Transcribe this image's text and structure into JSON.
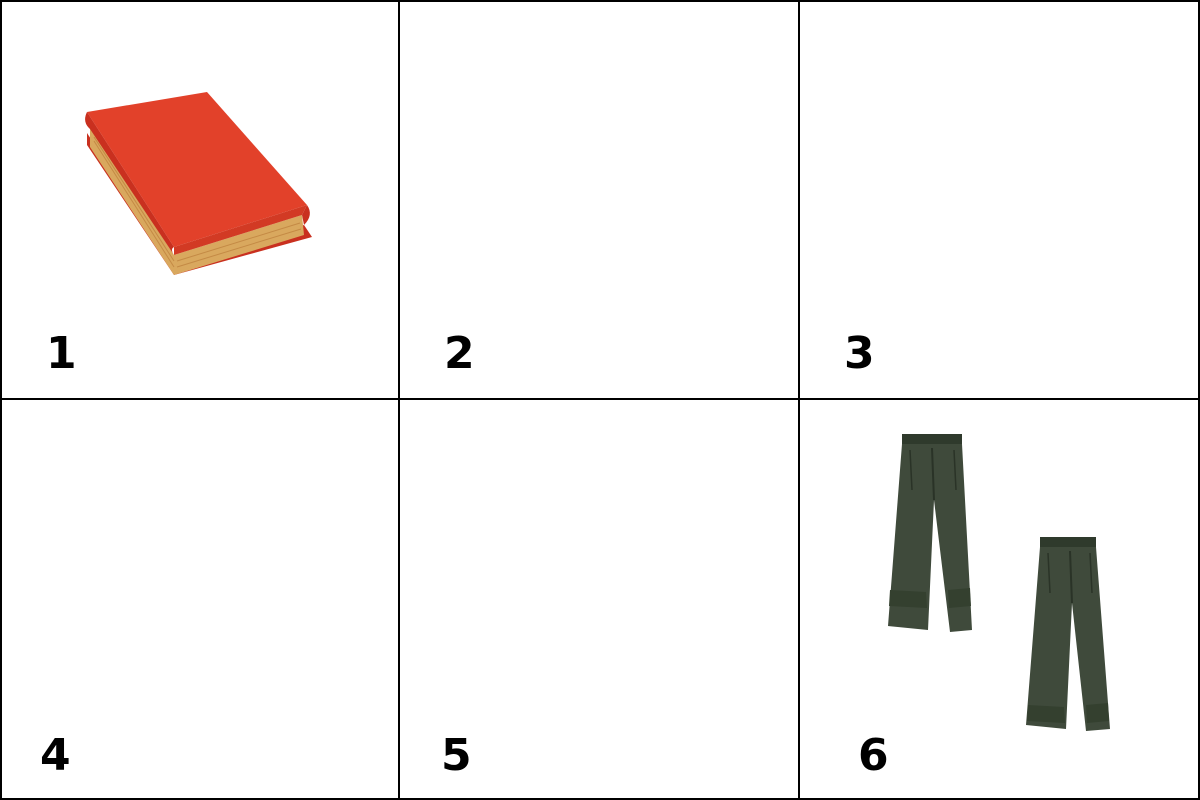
{
  "cells": [
    {
      "number": "1",
      "picture": "red-book-icon"
    },
    {
      "number": "2",
      "picture": ""
    },
    {
      "number": "3",
      "picture": ""
    },
    {
      "number": "4",
      "picture": ""
    },
    {
      "number": "5",
      "picture": ""
    },
    {
      "number": "6",
      "picture": "green-trousers-icon"
    }
  ],
  "colors": {
    "border": "#000000",
    "book_cover": "#e2412a",
    "book_pages": "#d9a85e",
    "trousers": "#3f4a3b"
  }
}
